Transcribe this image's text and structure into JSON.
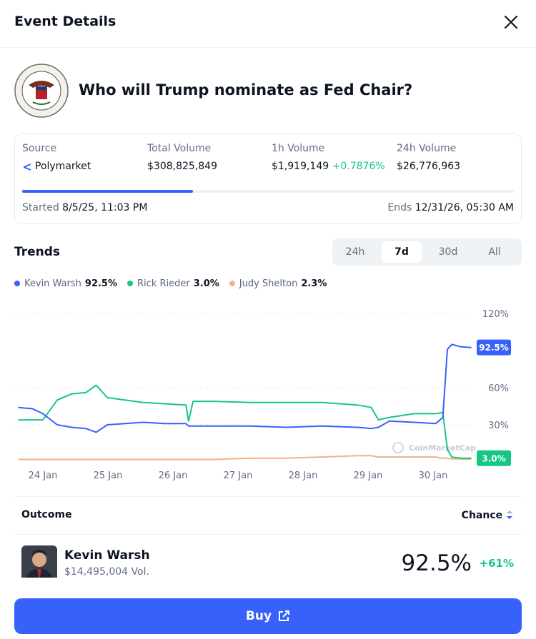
{
  "header": {
    "title": "Event Details"
  },
  "event": {
    "title": "Who will Trump nominate as Fed Chair?"
  },
  "stats": {
    "source_label": "Source",
    "source_value": "Polymarket",
    "total_volume_label": "Total Volume",
    "total_volume": "$308,825,849",
    "volume_1h_label": "1h Volume",
    "volume_1h": "$1,919,149",
    "volume_1h_change": "+0.7876%",
    "volume_24h_label": "24h Volume",
    "volume_24h": "$26,776,963",
    "started_label": "Started",
    "started": "8/5/25, 11:03 PM",
    "ends_label": "Ends",
    "ends": "12/31/26, 05:30 AM"
  },
  "trends": {
    "title": "Trends",
    "tabs": [
      "24h",
      "7d",
      "30d",
      "All"
    ],
    "active_tab": 1,
    "watermark": "CoinMarketCap"
  },
  "chart_data": {
    "type": "line",
    "x": [
      23.62,
      23.84,
      24.0,
      24.22,
      24.44,
      24.66,
      24.82,
      24.99,
      25.26,
      25.54,
      25.87,
      26.2,
      26.24,
      26.31,
      26.64,
      27.19,
      27.74,
      28.29,
      28.84,
      29.05,
      29.16,
      29.33,
      29.71,
      30.04,
      30.15,
      30.22,
      30.29,
      30.43,
      30.59
    ],
    "xlim": [
      23.56,
      30.66
    ],
    "xticks": [
      {
        "value": 24,
        "label": "24 Jan"
      },
      {
        "value": 25,
        "label": "25 Jan"
      },
      {
        "value": 26,
        "label": "26 Jan"
      },
      {
        "value": 27,
        "label": "27 Jan"
      },
      {
        "value": 28,
        "label": "28 Jan"
      },
      {
        "value": 29,
        "label": "29 Jan"
      },
      {
        "value": 30,
        "label": "30 Jan"
      }
    ],
    "ylim": [
      0,
      120
    ],
    "yticks": [
      {
        "value": 30,
        "label": "30%"
      },
      {
        "value": 60,
        "label": "60%"
      },
      {
        "value": 120,
        "label": "120%"
      }
    ],
    "grid": true,
    "series": [
      {
        "name": "Kevin Warsh",
        "latest": "92.5%",
        "color": "#3861fb",
        "badge": true,
        "values": [
          44,
          43,
          39,
          30,
          28,
          27,
          24,
          30,
          31,
          32,
          31,
          31,
          29,
          29,
          29,
          29,
          28,
          29,
          28,
          27,
          28,
          33,
          32,
          31,
          36,
          91,
          95,
          93,
          92.5
        ]
      },
      {
        "name": "Rick Rieder",
        "latest": "3.0%",
        "color": "#16c784",
        "badge": true,
        "values": [
          34,
          34,
          34,
          50,
          55,
          56,
          62,
          52,
          50,
          48,
          47,
          46,
          33,
          49,
          49,
          48,
          48,
          48,
          46,
          44,
          34,
          36,
          39,
          39,
          40,
          10,
          4,
          3,
          3.0
        ]
      },
      {
        "name": "Judy Shelton",
        "latest": "2.3%",
        "color": "#f4b183",
        "badge": false,
        "values": [
          2,
          2,
          2,
          2,
          2,
          2,
          2,
          2,
          2,
          2,
          2,
          2,
          2,
          2,
          2,
          3,
          3,
          4,
          5,
          5,
          4,
          4,
          4,
          4,
          3,
          3,
          2.5,
          2.3,
          2.3
        ]
      }
    ]
  },
  "outcomes": {
    "outcome_header": "Outcome",
    "chance_header": "Chance",
    "rows": [
      {
        "name": "Kevin Warsh",
        "volume": "$14,495,004 Vol.",
        "chance": "92.5%",
        "change": "+61%"
      }
    ]
  },
  "buy_button": "Buy"
}
